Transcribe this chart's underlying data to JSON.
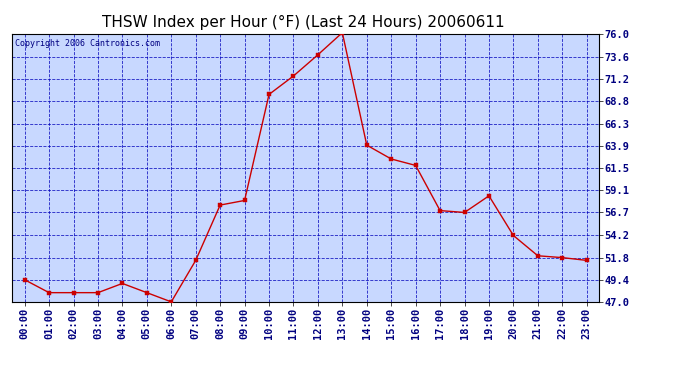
{
  "title": "THSW Index per Hour (°F) (Last 24 Hours) 20060611",
  "copyright": "Copyright 2006 Cantronics.com",
  "hours": [
    "00:00",
    "01:00",
    "02:00",
    "03:00",
    "04:00",
    "05:00",
    "06:00",
    "07:00",
    "08:00",
    "09:00",
    "10:00",
    "11:00",
    "12:00",
    "13:00",
    "14:00",
    "15:00",
    "16:00",
    "17:00",
    "18:00",
    "19:00",
    "20:00",
    "21:00",
    "22:00",
    "23:00"
  ],
  "values": [
    49.4,
    48.0,
    48.0,
    48.0,
    49.0,
    48.0,
    47.0,
    51.5,
    57.5,
    58.0,
    69.5,
    71.5,
    73.8,
    76.2,
    64.0,
    62.5,
    61.8,
    56.9,
    56.7,
    58.5,
    54.2,
    52.0,
    51.8,
    51.5
  ],
  "ylim_min": 47.0,
  "ylim_max": 76.0,
  "yticks": [
    47.0,
    49.4,
    51.8,
    54.2,
    56.7,
    59.1,
    61.5,
    63.9,
    66.3,
    68.8,
    71.2,
    73.6,
    76.0
  ],
  "line_color": "#cc0000",
  "marker_color": "#cc0000",
  "bg_color": "#c8d8ff",
  "grid_color": "#0000bb",
  "title_color": "#000000",
  "title_fontsize": 11,
  "copyright_fontsize": 6,
  "tick_fontsize": 7.5,
  "border_color": "#000000",
  "fig_bg": "#ffffff"
}
